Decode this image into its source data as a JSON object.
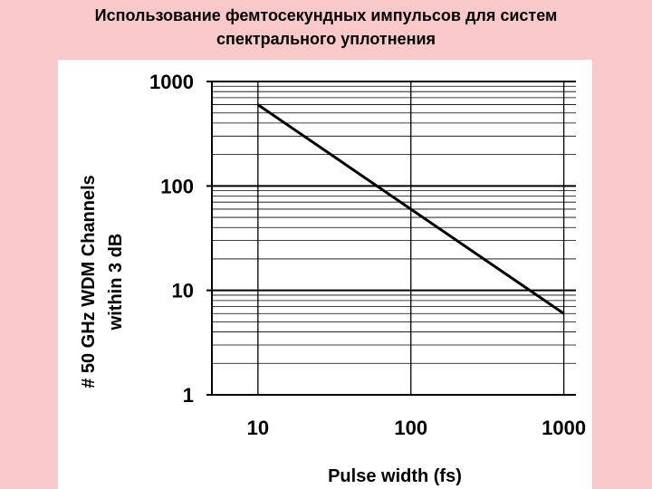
{
  "slide": {
    "title_line1": "Использование фемтосекундных импульсов для систем",
    "title_line2": "спектрального уплотнения",
    "background_color": "#f9c9c9"
  },
  "chart_data": {
    "type": "line",
    "x_scale": "log",
    "y_scale": "log",
    "xlabel": "Pulse width (fs)",
    "ylabel_line1": "# 50 GHz WDM Channels",
    "ylabel_line2": "within 3 dB",
    "xlim": [
      5,
      1200
    ],
    "ylim": [
      1,
      1000
    ],
    "x_ticks": [
      10,
      100,
      1000
    ],
    "x_tick_labels": [
      "10",
      "100",
      "1000"
    ],
    "y_ticks": [
      1,
      10,
      100,
      1000
    ],
    "y_tick_labels": [
      "1",
      "10",
      "100",
      "1000"
    ],
    "grid": true,
    "series": [
      {
        "x": [
          10,
          1000
        ],
        "y": [
          600,
          6
        ],
        "color": "#000000"
      }
    ]
  }
}
